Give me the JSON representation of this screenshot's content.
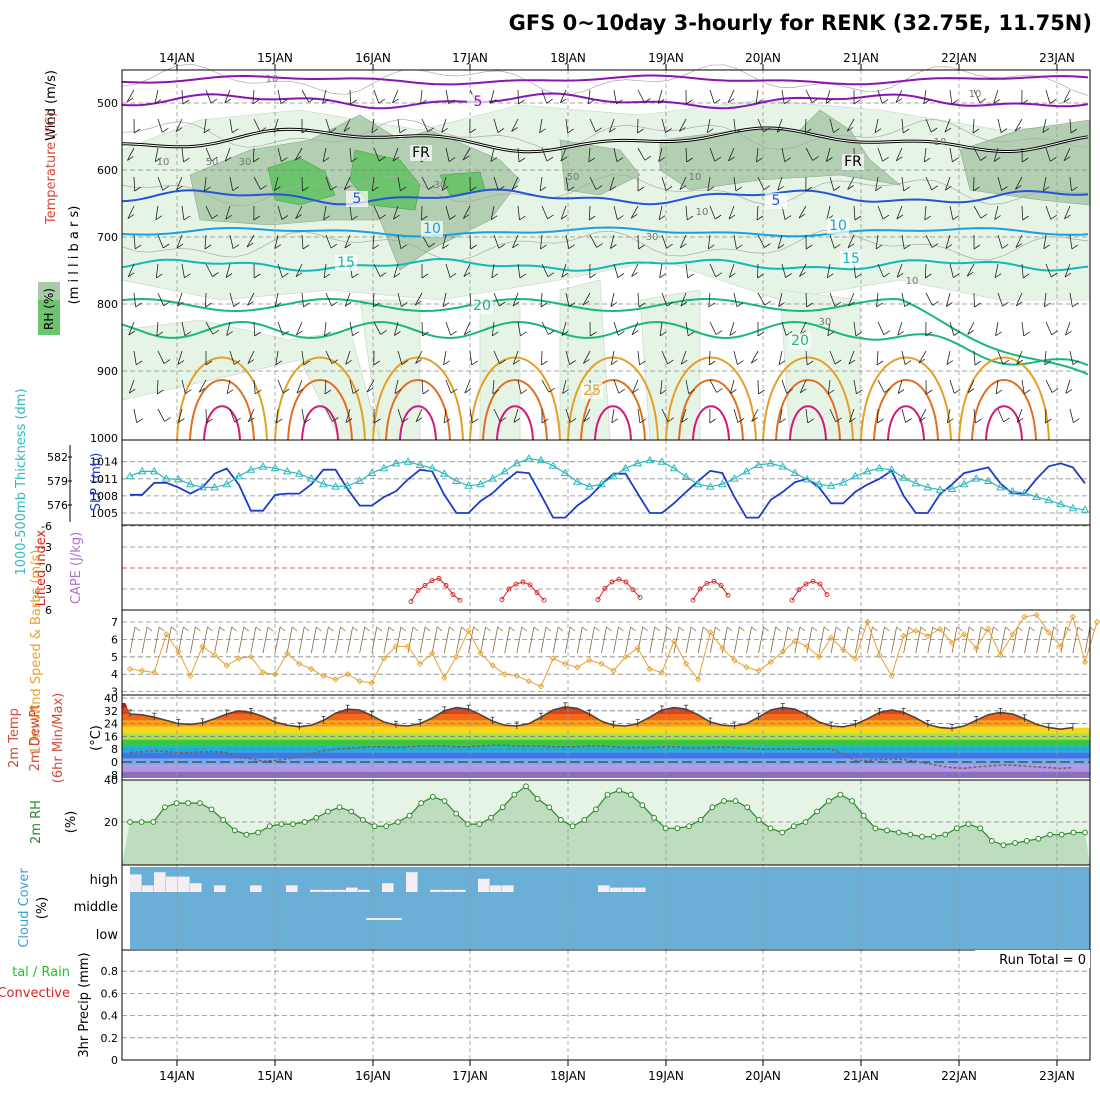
{
  "title": "GFS 0~10day 3-hourly for RENK (32.75E, 11.75N)",
  "colors": {
    "rh_light": "#e6f4e6",
    "rh_mid": "#a9c9a9",
    "rh_high": "#6cc56c",
    "temp_blue": "#2455d6",
    "temp_cyan": "#1aa0e0",
    "temp_teal": "#15b8b8",
    "temp_green": "#18b87a",
    "temp_orange": "#e3a024",
    "temp_darkorange": "#e07020",
    "temp_magenta": "#d41a7a",
    "temp_purple": "#8a14b4",
    "slp_blue": "#1c3cc8",
    "thick_cyan": "#30b8c0",
    "lifted_red": "#e02020",
    "cape_violet": "#b070d0",
    "wind_orange": "#e8a030",
    "rh2m_green": "#2a8a2a",
    "cloud_blue": "#6baed6",
    "precip_green": "#22c022"
  },
  "chart_data": [
    {
      "panel": "upper-air",
      "type": "heatmap",
      "ylabel_parts": [
        "Wind (m/s)",
        "Temperature (°C)",
        "(m i l l i b a r s)",
        "RH (%)"
      ],
      "y_ticks": [
        "500",
        "600",
        "700",
        "800",
        "900",
        "1000"
      ],
      "ylim": [
        450,
        1000
      ],
      "x_dates": [
        "14JAN",
        "15JAN",
        "16JAN",
        "17JAN",
        "18JAN",
        "19JAN",
        "20JAN",
        "21JAN",
        "22JAN",
        "23JAN"
      ],
      "isotherm_labels": [
        {
          "text": "5",
          "level": "500mb",
          "color": "#8a14b4"
        },
        {
          "text": "FR",
          "level": "freezing",
          "color": "#000000"
        },
        {
          "text": "FR",
          "level": "freezing",
          "color": "#000000"
        },
        {
          "text": "5",
          "level": "650mb",
          "color": "#2455d6"
        },
        {
          "text": "5",
          "level": "650mb",
          "color": "#2455d6"
        },
        {
          "text": "10",
          "level": "700mb",
          "color": "#1aa0e0"
        },
        {
          "text": "10",
          "level": "700mb",
          "color": "#1aa0e0"
        },
        {
          "text": "15",
          "level": "740mb",
          "color": "#15b8b8"
        },
        {
          "text": "15",
          "level": "740mb",
          "color": "#15b8b8"
        },
        {
          "text": "20",
          "level": "800mb",
          "color": "#18b87a"
        },
        {
          "text": "20",
          "level": "850mb",
          "color": "#18b87a"
        },
        {
          "text": "25",
          "level": "920mb",
          "color": "#e3a024"
        }
      ],
      "rh_labels": [
        "10",
        "50",
        "30",
        "10",
        "30",
        "10",
        "30",
        "50",
        "10",
        "10",
        "30",
        "10",
        "10"
      ]
    },
    {
      "panel": "slp-thickness",
      "type": "line",
      "ylabel_left": "1000-500mb Thickness (dm)",
      "ylabel_right": "SLP (mb)",
      "left_ticks": [
        "582",
        "579",
        "576"
      ],
      "right_ticks": [
        "1014",
        "1011",
        "1008",
        "1005"
      ],
      "series": [
        {
          "name": "SLP (mb)",
          "values": [
            1008.2,
            1008.2,
            1010.3,
            1010.3,
            1009.5,
            1008.4,
            1009.5,
            1011.9,
            1012.8,
            1010.0,
            1005.4,
            1005.4,
            1008.2,
            1008.4,
            1008.4,
            1010.0,
            1012.6,
            1012.6,
            1009.2,
            1006.3,
            1006.3,
            1007.8,
            1008.8,
            1010.9,
            1012.6,
            1012.3,
            1008.2,
            1005.0,
            1005.0,
            1007.1,
            1008.5,
            1010.5,
            1012.2,
            1012.0,
            1008.2,
            1004.2,
            1004.2,
            1006.3,
            1007.8,
            1010.0,
            1011.9,
            1011.9,
            1008.4,
            1005.0,
            1005.0,
            1006.7,
            1008.7,
            1010.6,
            1012.4,
            1012.0,
            1007.8,
            1004.2,
            1004.2,
            1007.3,
            1008.7,
            1010.4,
            1011.0,
            1009.5,
            1006.7,
            1006.7,
            1008.7,
            1010.0,
            1011.0,
            1012.4,
            1008.0,
            1005.0,
            1005.0,
            1008.3,
            1010.0,
            1012.0,
            1012.5,
            1013.0,
            1010.2,
            1008.4,
            1008.4,
            1011.0,
            1013.2,
            1013.7,
            1013.0,
            1010.2
          ]
        },
        {
          "name": "1000-500mb Thickness (dm)",
          "values": [
            579.6,
            580.2,
            580.2,
            579.3,
            579.2,
            578.6,
            578.2,
            578.2,
            578.6,
            579.6,
            580.4,
            580.8,
            580.6,
            580.2,
            579.9,
            579.3,
            578.6,
            578.3,
            578.4,
            579.0,
            580.0,
            580.6,
            581.2,
            581.4,
            581.0,
            580.6,
            579.9,
            579.0,
            578.4,
            578.6,
            579.3,
            580.2,
            581.2,
            581.8,
            581.6,
            580.9,
            580.0,
            578.9,
            578.3,
            578.6,
            579.6,
            580.6,
            581.2,
            581.6,
            581.4,
            580.6,
            579.5,
            578.6,
            578.3,
            578.6,
            579.3,
            580.2,
            581.0,
            581.2,
            580.8,
            580.0,
            579.2,
            578.6,
            578.4,
            578.8,
            579.6,
            580.2,
            580.6,
            580.4,
            579.4,
            578.7,
            578.2,
            577.9,
            578.0,
            578.6,
            579.3,
            579.0,
            578.2,
            577.7,
            577.5,
            577.0,
            576.6,
            576.1,
            575.6,
            575.4
          ]
        }
      ]
    },
    {
      "panel": "lifted-cape",
      "type": "line",
      "ylabel_left": "Lifted Index",
      "ylabel_right": "CAPE (J/kg)",
      "y_ticks": [
        "-6",
        "-3",
        "0",
        "3",
        "6"
      ],
      "ylim": [
        -6,
        6
      ],
      "series": [
        {
          "name": "Lifted Index",
          "segments": [
            [
              4.8,
              3.2,
              2.5,
              1.8,
              1.5,
              2.5,
              3.8,
              4.6
            ],
            [
              4.5,
              3.0,
              2.3,
              2.0,
              2.4,
              3.5,
              4.6
            ],
            [
              4.5,
              2.9,
              2.0,
              1.6,
              2.0,
              3.1,
              4.2
            ],
            [
              4.6,
              3.0,
              2.2,
              1.9,
              2.5,
              3.9
            ],
            [
              4.6,
              3.1,
              2.3,
              1.9,
              2.3,
              3.8
            ]
          ]
        }
      ]
    },
    {
      "panel": "10m-wind",
      "type": "line",
      "ylabel": "10m Wind Speed & Barbs (m/s)",
      "y_ticks": [
        "7",
        "6",
        "5",
        "4",
        "3"
      ],
      "ylim": [
        2.5,
        7.8
      ],
      "series": [
        {
          "name": "10m Wind Speed (m/s)",
          "values": [
            4.3,
            4.2,
            4.1,
            6.3,
            5.3,
            3.9,
            5.6,
            5.1,
            4.5,
            4.9,
            5.0,
            4.1,
            4.0,
            5.2,
            4.6,
            4.3,
            3.9,
            3.7,
            4.0,
            3.6,
            3.5,
            4.9,
            5.6,
            5.6,
            4.6,
            5.2,
            3.8,
            5.0,
            6.5,
            5.2,
            4.5,
            4.0,
            3.9,
            3.6,
            3.3,
            4.9,
            4.6,
            4.4,
            4.8,
            4.6,
            4.2,
            5.0,
            5.5,
            4.3,
            4.1,
            5.9,
            4.6,
            3.7,
            6.4,
            5.5,
            4.8,
            4.4,
            4.2,
            4.7,
            5.3,
            5.9,
            5.6,
            5.0,
            6.1,
            5.4,
            4.9,
            7.0,
            5.1,
            3.9,
            6.2,
            6.5,
            6.2,
            6.6,
            5.8,
            6.3,
            5.5,
            6.6,
            5.1,
            6.3,
            7.3,
            7.4,
            6.4,
            5.6,
            7.3,
            4.7,
            7.0
          ]
        }
      ]
    },
    {
      "panel": "2m-temp",
      "type": "area",
      "ylabel": "2m Temp 2m DewPt (6hr Min/Max) (°C)",
      "y_ticks": [
        "40",
        "32",
        "24",
        "16",
        "8",
        "0",
        "-8"
      ],
      "ylim": [
        -10,
        40
      ],
      "series": [
        {
          "name": "2m Temp",
          "values": [
            30,
            29.5,
            28,
            26,
            24,
            23.5,
            24.5,
            27,
            30,
            32,
            31,
            28.5,
            25,
            23,
            22,
            23,
            26,
            30.5,
            33,
            32.5,
            29,
            25,
            23,
            22.5,
            24,
            27.5,
            32,
            34,
            33,
            29.5,
            25.5,
            23,
            22.5,
            24,
            28,
            32.5,
            34.5,
            33.5,
            30,
            25.5,
            23,
            22.5,
            24,
            28,
            32.5,
            34,
            33,
            29.5,
            25,
            23,
            22.5,
            24,
            28,
            32.5,
            34,
            33,
            29.5,
            25,
            22.5,
            22,
            23.5,
            27,
            31,
            32.5,
            31,
            27.5,
            23.5,
            21.5,
            21,
            22.5,
            26,
            29.5,
            31,
            30,
            27,
            23.5,
            21.5,
            20.5,
            21.5
          ]
        },
        {
          "name": "2m DewPt",
          "values": [
            6,
            6.5,
            7,
            6.5,
            6,
            6,
            6.5,
            6.5,
            6,
            3,
            2,
            0.5,
            1,
            2,
            3,
            5,
            7,
            8,
            8.5,
            9,
            9.5,
            9.5,
            9,
            9.5,
            10,
            10,
            10,
            9.5,
            9.5,
            10,
            10.5,
            10.5,
            10,
            10,
            10,
            9.5,
            9.5,
            9.5,
            10,
            10,
            9.5,
            9,
            9,
            9,
            9.5,
            9.5,
            9,
            9,
            9,
            9.5,
            9,
            8.5,
            8,
            8,
            8,
            8,
            8,
            8,
            8,
            5,
            1,
            1,
            1.5,
            2,
            1.5,
            0.5,
            -1,
            -2.5,
            -3.5,
            -4,
            -3,
            -2.5,
            -2,
            -2,
            -2.5,
            -3,
            -3.5,
            -4,
            -3.5
          ]
        }
      ]
    },
    {
      "panel": "2m-rh",
      "type": "area",
      "ylabel": "2m RH (%)",
      "y_ticks": [
        "40",
        "20"
      ],
      "ylim": [
        0,
        40
      ],
      "series": [
        {
          "name": "2m RH (%)",
          "values": [
            20,
            20,
            20,
            27,
            29,
            29,
            29,
            26,
            21,
            16,
            14,
            15,
            18,
            19,
            19,
            20,
            22,
            25,
            27,
            25,
            21,
            18,
            18,
            20,
            23,
            29,
            32,
            30,
            24,
            19,
            19,
            22,
            27,
            33,
            37,
            31,
            27,
            21,
            18,
            21,
            26,
            33,
            35,
            33,
            28,
            22,
            17,
            17,
            18,
            21,
            27,
            30,
            30,
            27,
            21,
            17,
            15,
            18,
            20,
            25,
            30,
            33,
            30,
            23,
            17,
            16,
            15,
            14,
            13,
            13,
            14,
            17,
            19,
            17,
            11,
            9,
            10,
            11,
            12,
            14,
            14,
            15,
            15
          ]
        }
      ]
    },
    {
      "panel": "cloud-cover",
      "type": "bar",
      "ylabel": "Cloud Cover (%)",
      "levels": [
        "high",
        "middle",
        "low"
      ],
      "series": [
        {
          "name": "high",
          "values": [
            8,
            3,
            9,
            7,
            7,
            4,
            0,
            3,
            0,
            0,
            3,
            0,
            0,
            3,
            0,
            1,
            1,
            1,
            2,
            1,
            0,
            4,
            0,
            9,
            0,
            1,
            1,
            1,
            0,
            6,
            3,
            3,
            0,
            0,
            0,
            0,
            0,
            0,
            0,
            3,
            2,
            2,
            2,
            0,
            0,
            0,
            0,
            0,
            0,
            0,
            0,
            0,
            0,
            0,
            0,
            0,
            0,
            0,
            0,
            0,
            0,
            0,
            0,
            0,
            0,
            0,
            0,
            0,
            0,
            0,
            0,
            0,
            0,
            0,
            0,
            0,
            0,
            0,
            0,
            0
          ]
        },
        {
          "name": "middle",
          "values": [
            0,
            0,
            0,
            0,
            0,
            0,
            0,
            0,
            0,
            0,
            0,
            0,
            0,
            0,
            0,
            0,
            0,
            0,
            0,
            0,
            0,
            0,
            0,
            0,
            0,
            0,
            0,
            0,
            0,
            0,
            0,
            0,
            0,
            0,
            0,
            0,
            0,
            0,
            0,
            0,
            0,
            0,
            0,
            0,
            0,
            0,
            0,
            0,
            0,
            0,
            0,
            0,
            0,
            0,
            0,
            0,
            0,
            0,
            0,
            0,
            0,
            0,
            0,
            0,
            0,
            0,
            0,
            0,
            0,
            0,
            0,
            0,
            0,
            0,
            0,
            0,
            0,
            0,
            0,
            0
          ]
        },
        {
          "name": "low",
          "values": [
            0,
            0,
            0,
            0,
            0,
            0,
            0,
            0,
            0,
            0,
            0,
            0,
            0,
            0,
            0,
            0,
            0,
            0,
            0,
            0,
            0,
            0,
            0,
            0,
            0,
            0,
            0,
            0,
            0,
            0,
            0,
            0,
            0,
            0,
            0,
            0,
            0,
            0,
            0,
            0,
            0,
            0,
            0,
            0,
            0,
            0,
            0,
            0,
            0,
            0,
            0,
            0,
            0,
            0,
            0,
            0,
            0,
            0,
            0,
            0,
            0,
            0,
            0,
            0,
            0,
            0,
            0,
            0,
            0,
            0,
            0,
            0,
            0,
            0,
            0,
            0,
            0,
            0,
            0,
            0
          ]
        }
      ]
    },
    {
      "panel": "precip",
      "type": "bar",
      "ylabel": "3hr Precip (mm)",
      "ylabel_left_parts": [
        "tal / Rain",
        "Convective"
      ],
      "run_total": "Run Total = 0",
      "y_ticks": [
        "0.8",
        "0.6",
        "0.4",
        "0.2",
        "0"
      ],
      "ylim": [
        0,
        0.95
      ],
      "series": [
        {
          "name": "3hr Precip (mm)",
          "values": []
        }
      ]
    }
  ]
}
